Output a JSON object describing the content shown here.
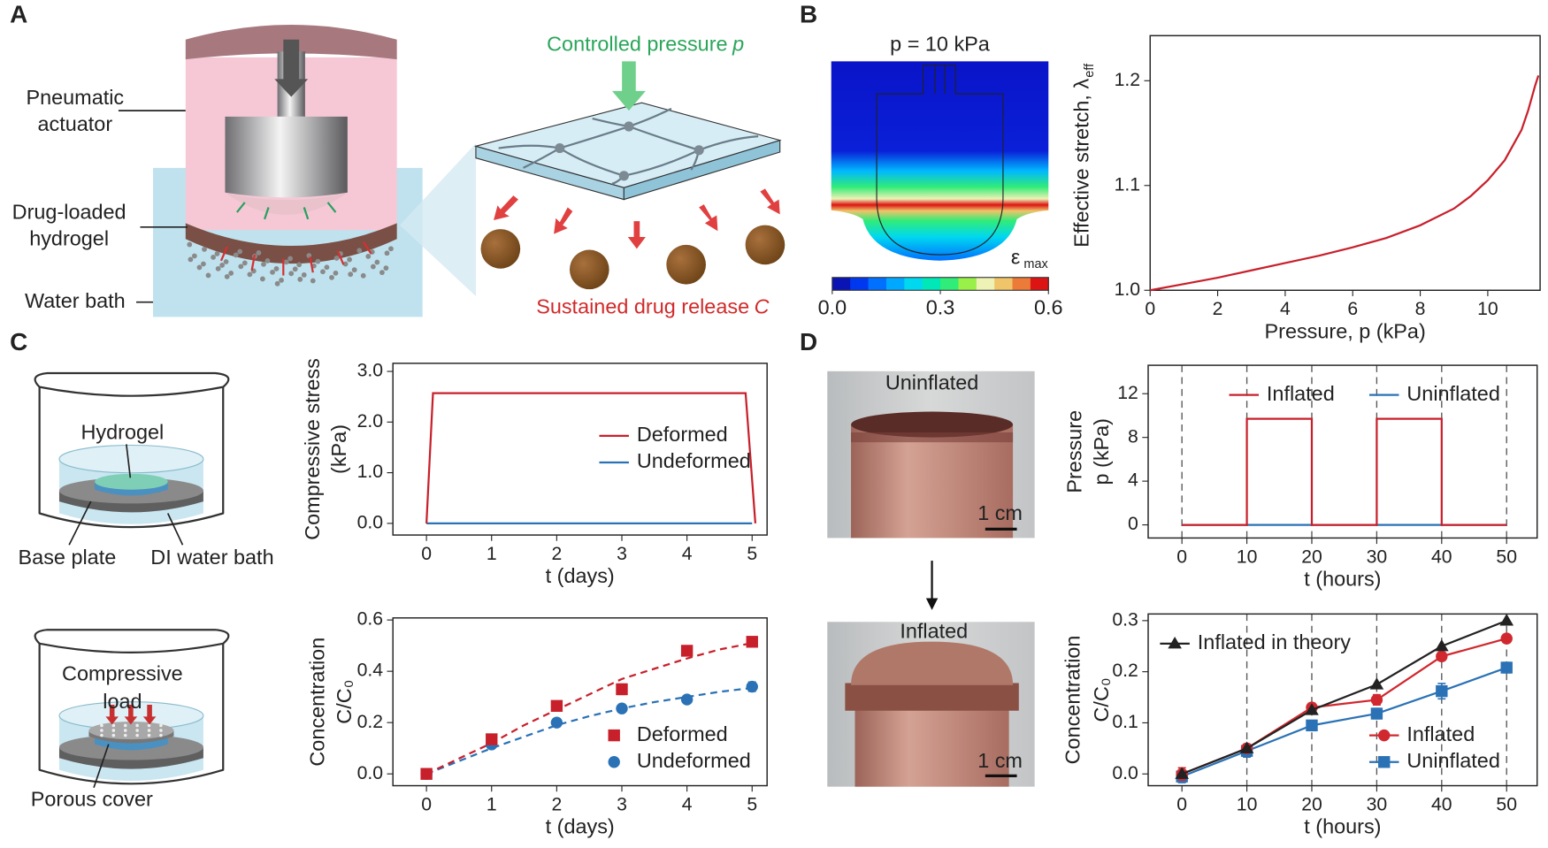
{
  "panel_labels": [
    "A",
    "B",
    "C",
    "D"
  ],
  "diagram_a": {
    "actuator_label": [
      "Pneumatic",
      "actuator"
    ],
    "hydrogel_label": [
      "Drug-loaded",
      "hydrogel"
    ],
    "bath_label": "Water bath",
    "pressure_label": "Controlled pressure",
    "pressure_symbol": "p",
    "release_label": "Sustained drug release",
    "release_symbol": "C"
  },
  "simulation_b": {
    "title": "p = 10 kPa",
    "colorbar_label": "ε",
    "colorbar_label_sub": "max",
    "colorbar": {
      "lim": [
        0,
        0.6
      ],
      "colors": [
        "#0a14b4",
        "#0038f0",
        "#0070ff",
        "#00a8ff",
        "#00d8f0",
        "#00e8b8",
        "#30ec78",
        "#98f048",
        "#eef2b4",
        "#f0c468",
        "#ec7a38",
        "#dc1414"
      ],
      "ticks": [
        {
          "value": 0,
          "label": "0.0"
        },
        {
          "value": 0.3,
          "label": "0.3"
        },
        {
          "value": 0.6,
          "label": "0.6"
        }
      ]
    }
  },
  "setup_c": {
    "hydrogel_label": "Hydrogel",
    "base_label": "Base plate",
    "bath_label": "DI water bath",
    "load_label": [
      "Compressive",
      "load"
    ],
    "cover_label": "Porous cover"
  },
  "photos_d": {
    "top_label": "Uninflated",
    "bottom_label": "Inflated",
    "scale_label": "1 cm"
  },
  "chart_data": [
    {
      "type": "line",
      "xlabel": "Pressure, p (kPa)",
      "ylabel": "Effective stretch, λ",
      "ylabel_sub": "eff",
      "xlim": [
        0,
        11.55
      ],
      "ylim": [
        1.0,
        1.243
      ],
      "xticks": [
        0,
        2,
        4,
        6,
        8,
        10
      ],
      "yticks": [
        {
          "value": 1.0,
          "label": "1.0"
        },
        {
          "value": 1.1,
          "label": "1.1"
        },
        {
          "value": 1.2,
          "label": "1.2"
        }
      ],
      "series": [
        {
          "color": "#c8202b",
          "line": "solid",
          "x": [
            0,
            1,
            2,
            3,
            4,
            5,
            6,
            7,
            8,
            9,
            9.5,
            10,
            10.5,
            11,
            11.2,
            11.4,
            11.5
          ],
          "values": [
            1.0,
            1.006,
            1.012,
            1.019,
            1.026,
            1.033,
            1.041,
            1.05,
            1.062,
            1.078,
            1.09,
            1.105,
            1.124,
            1.153,
            1.172,
            1.195,
            1.205
          ]
        }
      ]
    },
    {
      "type": "line",
      "xlabel": "t (days)",
      "ylabel": [
        "Compressive stress",
        "(kPa)"
      ],
      "xlim": [
        -0.515,
        5.23
      ],
      "ylim": [
        -0.23,
        3.16
      ],
      "xticks": [
        0,
        1,
        2,
        3,
        4,
        5
      ],
      "yticks": [
        {
          "value": 0,
          "label": "0.0"
        },
        {
          "value": 1,
          "label": "1.0"
        },
        {
          "value": 2,
          "label": "2.0"
        },
        {
          "value": 3,
          "label": "3.0"
        }
      ],
      "legend": "center right",
      "series": [
        {
          "name": "Deformed",
          "color": "#c8202b",
          "line": "solid",
          "x": [
            0,
            0.1,
            2.5,
            4.9,
            5.05
          ],
          "values": [
            0,
            2.57,
            2.57,
            2.57,
            0
          ]
        },
        {
          "name": "Undeformed",
          "color": "#2a72b5",
          "line": "solid",
          "x": [
            0,
            5
          ],
          "values": [
            0,
            0
          ]
        }
      ]
    },
    {
      "type": "line",
      "xlabel": "t (days)",
      "ylabel": [
        "Concentration",
        "C/C₀"
      ],
      "xlim": [
        -0.515,
        5.23
      ],
      "ylim": [
        -0.046,
        0.608
      ],
      "xticks": [
        0,
        1,
        2,
        3,
        4,
        5
      ],
      "yticks": [
        {
          "value": 0,
          "label": "0.0"
        },
        {
          "value": 0.2,
          "label": "0.2"
        },
        {
          "value": 0.4,
          "label": "0.4"
        },
        {
          "value": 0.6,
          "label": "0.6"
        }
      ],
      "legend": "lower right",
      "series": [
        {
          "name": "Deformed",
          "color": "#c8202b",
          "line": "none",
          "marker": "square",
          "x": [
            0,
            1,
            2,
            3,
            4,
            5
          ],
          "values": [
            0,
            0.135,
            0.265,
            0.33,
            0.48,
            0.515
          ],
          "errors": [
            0.01,
            0.01,
            0.015,
            0.02,
            0.01,
            0.01
          ]
        },
        {
          "name": "Undeformed",
          "color": "#2a72b5",
          "line": "none",
          "marker": "circle",
          "x": [
            0,
            1,
            2,
            3,
            4,
            5
          ],
          "values": [
            0,
            0.115,
            0.2,
            0.255,
            0.29,
            0.34
          ],
          "errors": [
            0.01,
            0.01,
            0.015,
            0.012,
            0.012,
            0.018
          ]
        },
        {
          "color": "#c8202b",
          "line": "dashed",
          "x": [
            0,
            0.5,
            1,
            1.5,
            2,
            2.5,
            3,
            3.5,
            4,
            4.5,
            5
          ],
          "values": [
            0,
            0.06,
            0.12,
            0.19,
            0.25,
            0.31,
            0.37,
            0.41,
            0.45,
            0.485,
            0.51
          ]
        },
        {
          "color": "#2a72b5",
          "line": "dashed",
          "x": [
            0,
            0.5,
            1,
            1.5,
            2,
            2.5,
            3,
            3.5,
            4,
            4.5,
            5
          ],
          "values": [
            0,
            0.05,
            0.1,
            0.145,
            0.19,
            0.225,
            0.255,
            0.28,
            0.3,
            0.32,
            0.335
          ]
        }
      ]
    },
    {
      "type": "line",
      "xlabel": "t (hours)",
      "ylabel": [
        "Pressure",
        "p (kPa)"
      ],
      "xlim": [
        -5.2,
        54.7
      ],
      "ylim": [
        -1.2,
        14.6
      ],
      "xticks": [
        0,
        10,
        20,
        30,
        40,
        50
      ],
      "yticks": [
        0,
        4,
        8,
        12
      ],
      "vlines": [
        0,
        10,
        20,
        30,
        40,
        50
      ],
      "legend": "upper right",
      "legend_columns": 2,
      "series": [
        {
          "name": "Inflated",
          "color": "#c8202b",
          "line": "solid",
          "x": [
            0,
            10,
            10,
            20,
            20,
            30,
            30,
            40,
            40,
            50
          ],
          "values": [
            0,
            0,
            9.7,
            9.7,
            0,
            0,
            9.7,
            9.7,
            0,
            0
          ]
        },
        {
          "name": "Uninflated",
          "color": "#2a72b5",
          "line": "solid",
          "x": [
            0,
            50
          ],
          "values": [
            0,
            0
          ]
        }
      ]
    },
    {
      "type": "line",
      "xlabel": "t (hours)",
      "ylabel": [
        "Concentration",
        "C/C₀"
      ],
      "xlim": [
        -5.2,
        54.7
      ],
      "ylim": [
        -0.023,
        0.313
      ],
      "xticks": [
        0,
        10,
        20,
        30,
        40,
        50
      ],
      "yticks": [
        {
          "value": 0,
          "label": "0.0"
        },
        {
          "value": 0.1,
          "label": "0.1"
        },
        {
          "value": 0.2,
          "label": "0.2"
        },
        {
          "value": 0.3,
          "label": "0.3"
        }
      ],
      "vlines": [
        10,
        20,
        30,
        40,
        50
      ],
      "legend": "lower right",
      "series": [
        {
          "name": "Inflated in theory",
          "legend": "upper left",
          "color": "#222222",
          "line": "solid",
          "marker": "triangle",
          "x": [
            0,
            10,
            20,
            30,
            40,
            50
          ],
          "values": [
            0,
            0.05,
            0.125,
            0.175,
            0.25,
            0.3
          ]
        },
        {
          "name": "Inflated",
          "color": "#d0282e",
          "line": "solid",
          "marker": "circle",
          "x": [
            0,
            10,
            20,
            30,
            40,
            50
          ],
          "values": [
            0,
            0.05,
            0.13,
            0.145,
            0.23,
            0.265
          ],
          "errors": [
            0.012,
            0.008,
            0.008,
            0.01,
            0.008,
            0.008
          ]
        },
        {
          "name": "Uninflated",
          "color": "#2a72b5",
          "line": "solid",
          "marker": "square",
          "x": [
            0,
            10,
            20,
            30,
            40,
            50
          ],
          "values": [
            -0.005,
            0.045,
            0.095,
            0.118,
            0.162,
            0.208
          ],
          "errors": [
            0.012,
            0.012,
            0.008,
            0.01,
            0.015,
            0.01
          ]
        }
      ]
    }
  ]
}
